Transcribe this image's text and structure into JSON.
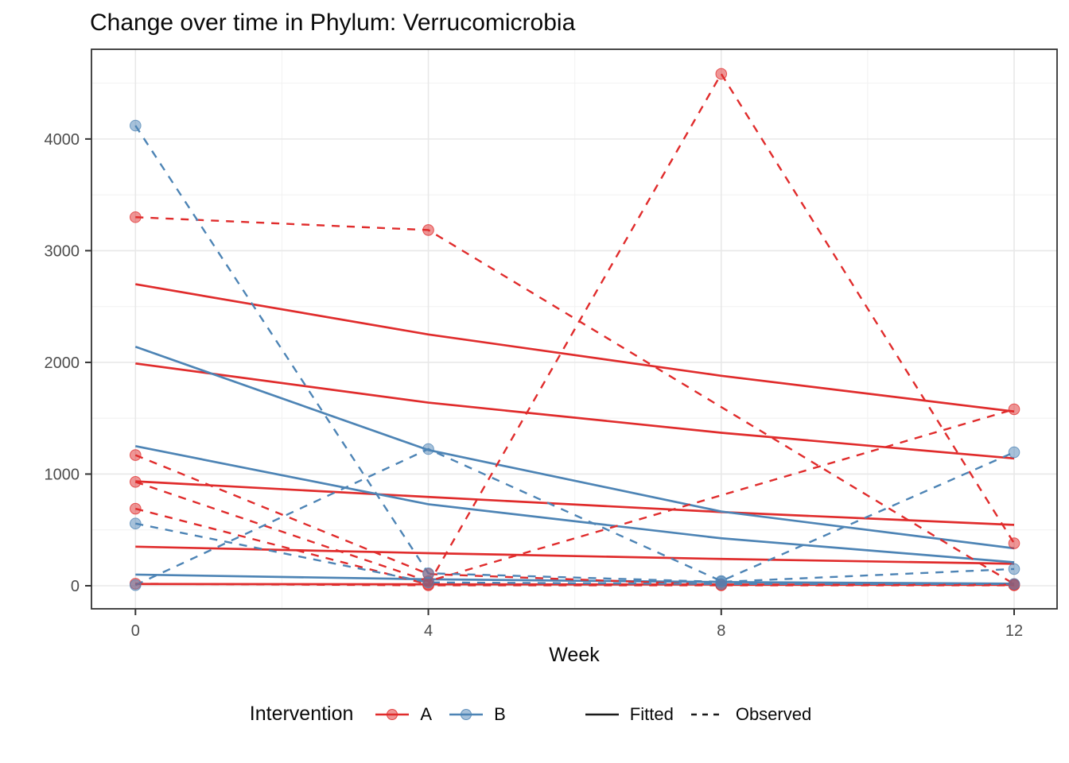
{
  "title": "Change over time in Phylum: Verrucomicrobia",
  "x_axis": {
    "label": "Week",
    "ticks": [
      0,
      4,
      8,
      12
    ],
    "minor": [
      2,
      6,
      10
    ]
  },
  "y_axis": {
    "ticks": [
      0,
      1000,
      2000,
      3000,
      4000
    ],
    "minor": [
      500,
      1500,
      2500,
      3500,
      4500
    ]
  },
  "legend": {
    "title": "Intervention",
    "groups": [
      {
        "label": "A",
        "color": "#e02c2c"
      },
      {
        "label": "B",
        "color": "#4d84b5"
      }
    ],
    "linetypes": [
      {
        "label": "Fitted",
        "style": "solid"
      },
      {
        "label": "Observed",
        "style": "dashed"
      }
    ]
  },
  "colors": {
    "red": "#e02c2c",
    "blue": "#4d84b5",
    "grid_major": "#e8e8e8",
    "grid_minor": "#f2f2f2",
    "panel_border": "#333333",
    "tick_label": "#4d4d4d",
    "legend_key_line": "#1a1a1a"
  },
  "chart_data": {
    "type": "line",
    "title": "Change over time in Phylum: Verrucomicrobia",
    "xlabel": "Week",
    "ylabel": "",
    "x": [
      0,
      4,
      8,
      12
    ],
    "xlim": [
      0,
      12
    ],
    "ylim": [
      0,
      4600
    ],
    "grid": true,
    "legend_position": "bottom",
    "series": [
      {
        "name": "A-fit-1",
        "group": "A",
        "linetype": "fitted",
        "points": [
          [
            0,
            2700
          ],
          [
            4,
            2250
          ],
          [
            8,
            1880
          ],
          [
            12,
            1560
          ]
        ]
      },
      {
        "name": "A-fit-2",
        "group": "A",
        "linetype": "fitted",
        "points": [
          [
            0,
            1990
          ],
          [
            4,
            1640
          ],
          [
            8,
            1370
          ],
          [
            12,
            1140
          ]
        ]
      },
      {
        "name": "A-fit-3",
        "group": "A",
        "linetype": "fitted",
        "points": [
          [
            0,
            935
          ],
          [
            4,
            795
          ],
          [
            8,
            660
          ],
          [
            12,
            545
          ]
        ]
      },
      {
        "name": "A-fit-4",
        "group": "A",
        "linetype": "fitted",
        "points": [
          [
            0,
            350
          ],
          [
            4,
            292
          ],
          [
            8,
            240
          ],
          [
            12,
            197
          ]
        ]
      },
      {
        "name": "A-fit-5",
        "group": "A",
        "linetype": "fitted",
        "points": [
          [
            0,
            16
          ],
          [
            4,
            13
          ],
          [
            8,
            11
          ],
          [
            12,
            9
          ]
        ]
      },
      {
        "name": "B-fit-1",
        "group": "B",
        "linetype": "fitted",
        "points": [
          [
            0,
            2140
          ],
          [
            4,
            1215
          ],
          [
            8,
            665
          ],
          [
            12,
            335
          ]
        ]
      },
      {
        "name": "B-fit-2",
        "group": "B",
        "linetype": "fitted",
        "points": [
          [
            0,
            1250
          ],
          [
            4,
            730
          ],
          [
            8,
            425
          ],
          [
            12,
            210
          ]
        ]
      },
      {
        "name": "B-fit-3",
        "group": "B",
        "linetype": "fitted",
        "points": [
          [
            0,
            100
          ],
          [
            4,
            58
          ],
          [
            8,
            33
          ],
          [
            12,
            19
          ]
        ]
      },
      {
        "name": "A-obs-1",
        "group": "A",
        "linetype": "observed",
        "points": [
          [
            0,
            3300
          ],
          [
            4,
            3185
          ],
          [
            12,
            15
          ]
        ]
      },
      {
        "name": "A-obs-2",
        "group": "A",
        "linetype": "observed",
        "points": [
          [
            0,
            1170
          ],
          [
            4,
            105
          ],
          [
            8,
            8
          ],
          [
            12,
            8
          ]
        ]
      },
      {
        "name": "A-obs-3",
        "group": "A",
        "linetype": "observed",
        "points": [
          [
            0,
            930
          ],
          [
            4,
            40
          ],
          [
            12,
            1580
          ]
        ]
      },
      {
        "name": "A-obs-4",
        "group": "A",
        "linetype": "observed",
        "points": [
          [
            0,
            690
          ],
          [
            4,
            12
          ],
          [
            8,
            4583
          ],
          [
            12,
            380
          ]
        ]
      },
      {
        "name": "A-obs-5",
        "group": "A",
        "linetype": "observed",
        "points": [
          [
            0,
            18
          ],
          [
            4,
            4
          ],
          [
            8,
            4
          ],
          [
            12,
            4
          ]
        ]
      },
      {
        "name": "B-obs-1",
        "group": "B",
        "linetype": "observed",
        "points": [
          [
            0,
            4120
          ],
          [
            4,
            112
          ],
          [
            8,
            35
          ],
          [
            12,
            150
          ]
        ]
      },
      {
        "name": "B-obs-2",
        "group": "B",
        "linetype": "observed",
        "points": [
          [
            0,
            6
          ],
          [
            4,
            1224
          ],
          [
            8,
            42
          ],
          [
            12,
            1195
          ]
        ]
      },
      {
        "name": "B-obs-3",
        "group": "B",
        "linetype": "observed",
        "points": [
          [
            0,
            557
          ],
          [
            4,
            30
          ],
          [
            8,
            16
          ],
          [
            12,
            16
          ]
        ]
      }
    ]
  }
}
